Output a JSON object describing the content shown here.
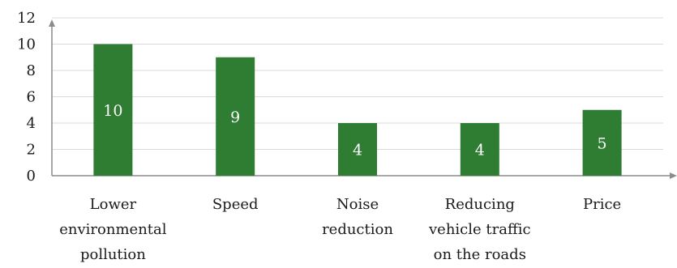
{
  "chart_data": {
    "type": "bar",
    "categories": [
      [
        "Lower",
        "environmental",
        "pollution"
      ],
      [
        "Speed"
      ],
      [
        "Noise",
        "reduction"
      ],
      [
        "Reducing",
        "vehicle traffic",
        "on the roads"
      ],
      [
        "Price"
      ]
    ],
    "values": [
      10,
      9,
      4,
      4,
      5
    ],
    "data_labels": [
      "10",
      "9",
      "4",
      "4",
      "5"
    ],
    "y_ticks": [
      "0",
      "2",
      "4",
      "6",
      "8",
      "10",
      "12"
    ],
    "ylim": [
      0,
      12
    ],
    "title": "",
    "xlabel": "",
    "ylabel": "",
    "grid": true,
    "legend": "none",
    "colors": {
      "bar": "#2e7d32",
      "grid": "#d9d9d9",
      "axis": "#8c8c8c"
    }
  }
}
